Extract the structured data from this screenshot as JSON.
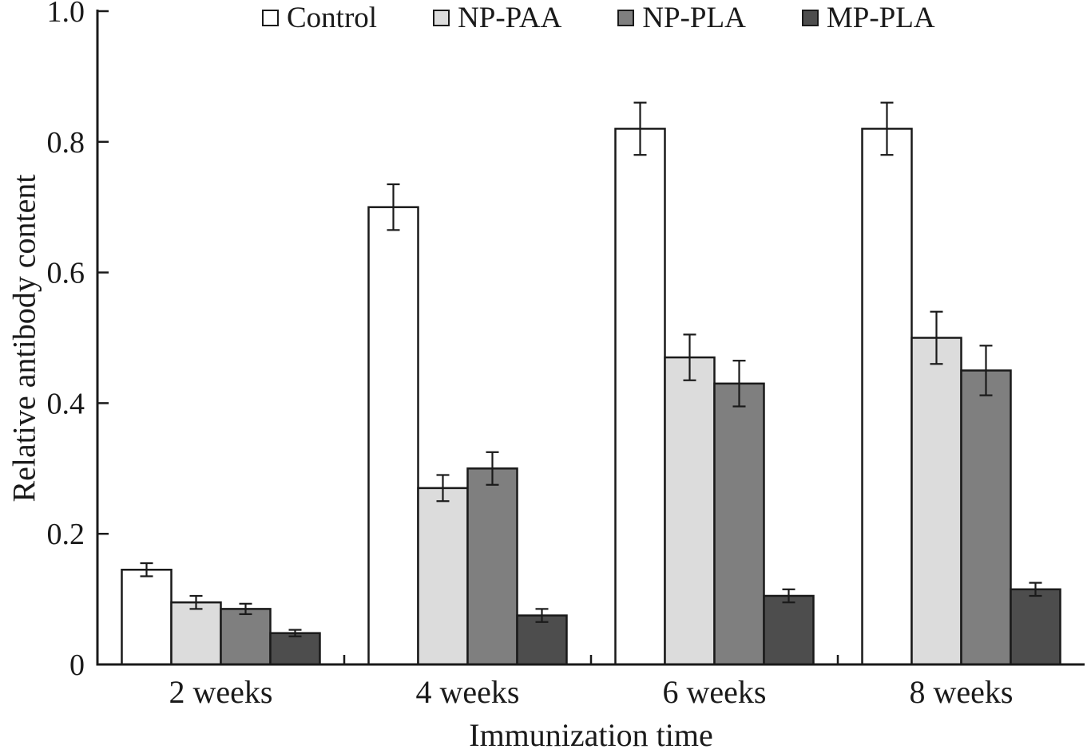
{
  "chart_data": {
    "type": "bar",
    "title": "",
    "xlabel": "Immunization time",
    "ylabel": "Relative antibody content",
    "ylim": [
      0,
      1.0
    ],
    "y_ticks": [
      0,
      0.2,
      0.4,
      0.6,
      0.8,
      1.0
    ],
    "y_tick_labels": [
      "0",
      "0.2",
      "0.4",
      "0.6",
      "0.8",
      "1.0"
    ],
    "grid": false,
    "legend_position": "top",
    "categories": [
      "2 weeks",
      "4 weeks",
      "6 weeks",
      "8 weeks"
    ],
    "series": [
      {
        "name": "Control",
        "color": "#ffffff",
        "values": [
          0.145,
          0.7,
          0.82,
          0.82
        ],
        "errors": [
          0.01,
          0.035,
          0.04,
          0.04
        ]
      },
      {
        "name": "NP-PAA",
        "color": "#dcdcdc",
        "values": [
          0.095,
          0.27,
          0.47,
          0.5
        ],
        "errors": [
          0.01,
          0.02,
          0.035,
          0.04
        ]
      },
      {
        "name": "NP-PLA",
        "color": "#7f7f7f",
        "values": [
          0.085,
          0.3,
          0.43,
          0.45
        ],
        "errors": [
          0.008,
          0.025,
          0.035,
          0.038
        ]
      },
      {
        "name": "MP-PLA",
        "color": "#4d4d4d",
        "values": [
          0.048,
          0.075,
          0.105,
          0.115
        ],
        "errors": [
          0.005,
          0.01,
          0.01,
          0.01
        ]
      }
    ],
    "bar_border_color": "#1a1a1a",
    "axis_color": "#1a1a1a"
  }
}
